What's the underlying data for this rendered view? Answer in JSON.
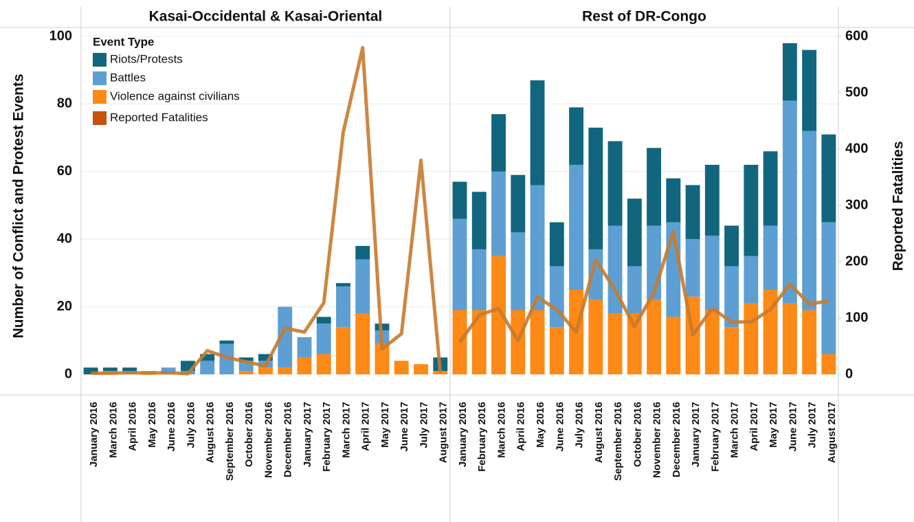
{
  "chart_data": {
    "type": "bar",
    "ylabel": "Number of Conflict and Protest Events",
    "y2label": "Reported Fatalities",
    "legend_title": "Event Type",
    "ylim": [
      0,
      100
    ],
    "yticks": [
      0,
      20,
      40,
      60,
      80,
      100
    ],
    "y2lim": [
      0,
      600
    ],
    "y2ticks": [
      0,
      100,
      200,
      300,
      400,
      500,
      600
    ],
    "grid": true,
    "panels": [
      {
        "title": "Kasai-Occidental & Kasai-Oriental",
        "categories": [
          "January 2016",
          "March 2016",
          "April 2016",
          "May 2016",
          "June 2016",
          "July 2016",
          "August 2016",
          "September 2016",
          "October 2016",
          "November 2016",
          "December 2016",
          "January 2017",
          "February 2017",
          "March 2017",
          "April 2017",
          "May 2017",
          "June 2017",
          "July 2017",
          "August 2017"
        ],
        "series": [
          {
            "name": "Riots/Protests",
            "color": "#11667e",
            "values": [
              2,
              1,
              1,
              0,
              0,
              3,
              2,
              1,
              1,
              2,
              0,
              0,
              2,
              1,
              4,
              2,
              0,
              0,
              4
            ]
          },
          {
            "name": "Battles",
            "color": "#5d9fd3",
            "values": [
              0,
              0,
              1,
              0,
              2,
              1,
              4,
              9,
              3,
              2,
              18,
              6,
              9,
              12,
              16,
              4,
              0,
              0,
              0
            ]
          },
          {
            "name": "Violence against civilians",
            "color": "#fd8916",
            "values": [
              0,
              1,
              0,
              1,
              0,
              0,
              0,
              0,
              1,
              2,
              2,
              5,
              6,
              14,
              18,
              9,
              4,
              3,
              1
            ]
          },
          {
            "name": "Reported Fatalities",
            "color": "#c5520d",
            "axis": "y2",
            "values": [
              2,
              2,
              3,
              2,
              3,
              1,
              42,
              30,
              22,
              15,
              82,
              75,
              127,
              430,
              580,
              45,
              72,
              380,
              3
            ]
          }
        ]
      },
      {
        "title": "Rest of DR-Congo",
        "categories": [
          "January 2016",
          "February 2016",
          "March 2016",
          "April 2016",
          "May 2016",
          "June 2016",
          "July 2016",
          "August 2016",
          "September 2016",
          "October 2016",
          "November 2016",
          "December 2016",
          "January 2017",
          "February 2017",
          "March 2017",
          "April 2017",
          "May 2017",
          "June 2017",
          "July 2017",
          "August 2017"
        ],
        "series": [
          {
            "name": "Riots/Protests",
            "color": "#11667e",
            "values": [
              11,
              17,
              17,
              17,
              31,
              13,
              17,
              36,
              25,
              20,
              23,
              13,
              16,
              21,
              12,
              27,
              22,
              17,
              24,
              26
            ]
          },
          {
            "name": "Battles",
            "color": "#5d9fd3",
            "values": [
              27,
              18,
              25,
              23,
              37,
              18,
              37,
              15,
              26,
              14,
              22,
              28,
              17,
              22,
              18,
              14,
              19,
              60,
              53,
              39
            ]
          },
          {
            "name": "Violence against civilians",
            "color": "#fd8916",
            "values": [
              19,
              19,
              35,
              19,
              19,
              14,
              25,
              22,
              18,
              18,
              22,
              17,
              23,
              19,
              14,
              21,
              25,
              21,
              19,
              6
            ]
          },
          {
            "name": "Reported Fatalities",
            "color": "#c5520d",
            "axis": "y2",
            "values": [
              57,
              105,
              117,
              60,
              137,
              115,
              75,
              203,
              150,
              85,
              145,
              253,
              70,
              117,
              93,
              93,
              115,
              160,
              125,
              130
            ]
          }
        ]
      }
    ]
  }
}
